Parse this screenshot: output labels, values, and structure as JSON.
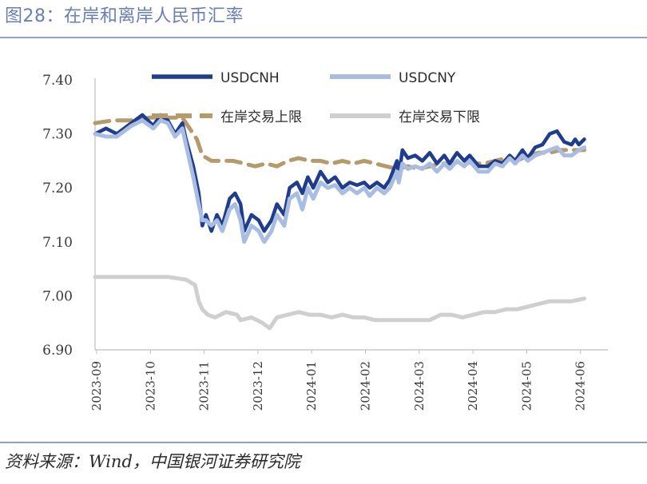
{
  "header": {
    "title": "图28：在岸和离岸人民币汇率"
  },
  "footer": {
    "source": "资料来源：Wind，中国银河证券研究院"
  },
  "chart_data": {
    "type": "line",
    "ylim": [
      6.9,
      7.4
    ],
    "yticks": [
      "7.40",
      "7.30",
      "7.20",
      "7.10",
      "7.00",
      "6.90"
    ],
    "x_labels": [
      "2023-09",
      "2023-10",
      "2023-11",
      "2023-12",
      "2024-01",
      "2024-02",
      "2024-03",
      "2024-04",
      "2024-05",
      "2024-06"
    ],
    "legend": [
      "USDCNH",
      "USDCNY",
      "在岸交易上限",
      "在岸交易下限"
    ],
    "legend_placement": "top",
    "grid": false,
    "colors": {
      "USDCNH": "#1f3d8c",
      "USDCNY": "#a9bde3",
      "upper": "#b49a6c",
      "lower": "#cfcfcf"
    },
    "series": [
      {
        "name": "USDCNH",
        "key": "cnh",
        "values": [
          [
            0,
            7.3
          ],
          [
            0.3,
            7.31
          ],
          [
            0.6,
            7.3
          ],
          [
            1.0,
            7.32
          ],
          [
            1.3,
            7.335
          ],
          [
            1.6,
            7.315
          ],
          [
            1.8,
            7.335
          ],
          [
            2.0,
            7.325
          ],
          [
            2.2,
            7.3
          ],
          [
            2.4,
            7.32
          ],
          [
            2.5,
            7.29
          ],
          [
            2.7,
            7.24
          ],
          [
            2.85,
            7.19
          ],
          [
            2.95,
            7.13
          ],
          [
            3.05,
            7.15
          ],
          [
            3.2,
            7.12
          ],
          [
            3.35,
            7.15
          ],
          [
            3.5,
            7.13
          ],
          [
            3.7,
            7.18
          ],
          [
            3.85,
            7.19
          ],
          [
            4.0,
            7.17
          ],
          [
            4.1,
            7.12
          ],
          [
            4.3,
            7.15
          ],
          [
            4.5,
            7.14
          ],
          [
            4.65,
            7.12
          ],
          [
            4.85,
            7.14
          ],
          [
            5.0,
            7.17
          ],
          [
            5.2,
            7.15
          ],
          [
            5.35,
            7.2
          ],
          [
            5.55,
            7.21
          ],
          [
            5.7,
            7.19
          ],
          [
            5.85,
            7.22
          ],
          [
            6.0,
            7.2
          ],
          [
            6.2,
            7.23
          ],
          [
            6.4,
            7.21
          ],
          [
            6.6,
            7.22
          ],
          [
            6.8,
            7.2
          ],
          [
            7.0,
            7.21
          ],
          [
            7.2,
            7.205
          ],
          [
            7.4,
            7.21
          ],
          [
            7.55,
            7.2
          ],
          [
            7.75,
            7.21
          ],
          [
            7.95,
            7.2
          ],
          [
            8.1,
            7.215
          ],
          [
            8.3,
            7.25
          ],
          [
            8.35,
            7.22
          ],
          [
            8.45,
            7.27
          ],
          [
            8.6,
            7.255
          ],
          [
            8.8,
            7.26
          ],
          [
            9.0,
            7.25
          ],
          [
            9.2,
            7.265
          ],
          [
            9.4,
            7.245
          ],
          [
            9.6,
            7.26
          ],
          [
            9.75,
            7.245
          ],
          [
            9.95,
            7.265
          ],
          [
            10.15,
            7.25
          ],
          [
            10.3,
            7.26
          ],
          [
            10.55,
            7.24
          ],
          [
            10.8,
            7.24
          ],
          [
            11.0,
            7.25
          ],
          [
            11.2,
            7.245
          ],
          [
            11.4,
            7.26
          ],
          [
            11.55,
            7.25
          ],
          [
            11.75,
            7.27
          ],
          [
            11.9,
            7.255
          ],
          [
            12.1,
            7.275
          ],
          [
            12.3,
            7.28
          ],
          [
            12.5,
            7.3
          ],
          [
            12.7,
            7.305
          ],
          [
            12.9,
            7.285
          ],
          [
            13.1,
            7.28
          ],
          [
            13.2,
            7.29
          ],
          [
            13.3,
            7.28
          ],
          [
            13.45,
            7.29
          ]
        ]
      },
      {
        "name": "USDCNY",
        "key": "cny",
        "values": [
          [
            0,
            7.3
          ],
          [
            0.3,
            7.295
          ],
          [
            0.6,
            7.295
          ],
          [
            1.0,
            7.315
          ],
          [
            1.3,
            7.325
          ],
          [
            1.6,
            7.31
          ],
          [
            1.8,
            7.325
          ],
          [
            2.0,
            7.32
          ],
          [
            2.2,
            7.295
          ],
          [
            2.4,
            7.31
          ],
          [
            2.5,
            7.28
          ],
          [
            2.7,
            7.22
          ],
          [
            2.85,
            7.17
          ],
          [
            2.95,
            7.14
          ],
          [
            3.05,
            7.14
          ],
          [
            3.2,
            7.13
          ],
          [
            3.35,
            7.14
          ],
          [
            3.5,
            7.12
          ],
          [
            3.7,
            7.16
          ],
          [
            3.85,
            7.17
          ],
          [
            4.0,
            7.14
          ],
          [
            4.1,
            7.1
          ],
          [
            4.3,
            7.13
          ],
          [
            4.5,
            7.12
          ],
          [
            4.65,
            7.1
          ],
          [
            4.85,
            7.12
          ],
          [
            5.0,
            7.15
          ],
          [
            5.2,
            7.13
          ],
          [
            5.35,
            7.18
          ],
          [
            5.55,
            7.19
          ],
          [
            5.7,
            7.16
          ],
          [
            5.85,
            7.2
          ],
          [
            6.0,
            7.18
          ],
          [
            6.2,
            7.21
          ],
          [
            6.4,
            7.2
          ],
          [
            6.6,
            7.205
          ],
          [
            6.8,
            7.19
          ],
          [
            7.0,
            7.2
          ],
          [
            7.2,
            7.19
          ],
          [
            7.4,
            7.2
          ],
          [
            7.55,
            7.185
          ],
          [
            7.75,
            7.2
          ],
          [
            7.95,
            7.19
          ],
          [
            8.1,
            7.2
          ],
          [
            8.3,
            7.23
          ],
          [
            8.35,
            7.21
          ],
          [
            8.45,
            7.245
          ],
          [
            8.6,
            7.235
          ],
          [
            8.8,
            7.24
          ],
          [
            9.0,
            7.235
          ],
          [
            9.2,
            7.245
          ],
          [
            9.4,
            7.23
          ],
          [
            9.6,
            7.245
          ],
          [
            9.75,
            7.235
          ],
          [
            9.95,
            7.25
          ],
          [
            10.15,
            7.24
          ],
          [
            10.3,
            7.25
          ],
          [
            10.55,
            7.23
          ],
          [
            10.8,
            7.23
          ],
          [
            11.0,
            7.245
          ],
          [
            11.2,
            7.24
          ],
          [
            11.4,
            7.255
          ],
          [
            11.55,
            7.245
          ],
          [
            11.75,
            7.26
          ],
          [
            11.9,
            7.25
          ],
          [
            12.1,
            7.26
          ],
          [
            12.3,
            7.265
          ],
          [
            12.5,
            7.27
          ],
          [
            12.7,
            7.275
          ],
          [
            12.9,
            7.26
          ],
          [
            13.1,
            7.26
          ],
          [
            13.2,
            7.265
          ],
          [
            13.3,
            7.27
          ],
          [
            13.45,
            7.275
          ]
        ]
      },
      {
        "name": "在岸交易上限",
        "key": "upper",
        "values": [
          [
            0,
            7.32
          ],
          [
            0.5,
            7.325
          ],
          [
            1.0,
            7.325
          ],
          [
            1.5,
            7.33
          ],
          [
            2.0,
            7.33
          ],
          [
            2.4,
            7.33
          ],
          [
            2.6,
            7.31
          ],
          [
            2.8,
            7.29
          ],
          [
            2.95,
            7.26
          ],
          [
            3.2,
            7.25
          ],
          [
            3.5,
            7.25
          ],
          [
            3.8,
            7.25
          ],
          [
            4.1,
            7.245
          ],
          [
            4.4,
            7.24
          ],
          [
            4.7,
            7.245
          ],
          [
            5.0,
            7.24
          ],
          [
            5.3,
            7.25
          ],
          [
            5.6,
            7.255
          ],
          [
            5.9,
            7.25
          ],
          [
            6.2,
            7.25
          ],
          [
            6.5,
            7.245
          ],
          [
            6.8,
            7.25
          ],
          [
            7.1,
            7.245
          ],
          [
            7.4,
            7.25
          ],
          [
            7.7,
            7.245
          ],
          [
            8.0,
            7.24
          ],
          [
            8.3,
            7.235
          ],
          [
            8.6,
            7.24
          ],
          [
            8.9,
            7.235
          ],
          [
            9.2,
            7.24
          ],
          [
            9.5,
            7.245
          ],
          [
            9.8,
            7.245
          ],
          [
            10.1,
            7.25
          ],
          [
            10.4,
            7.245
          ],
          [
            10.7,
            7.245
          ],
          [
            11.0,
            7.25
          ],
          [
            11.3,
            7.255
          ],
          [
            11.6,
            7.25
          ],
          [
            11.9,
            7.26
          ],
          [
            12.2,
            7.265
          ],
          [
            12.5,
            7.265
          ],
          [
            12.8,
            7.27
          ],
          [
            13.1,
            7.27
          ],
          [
            13.45,
            7.27
          ]
        ]
      },
      {
        "name": "在岸交易下限",
        "key": "lower",
        "values": [
          [
            0,
            7.035
          ],
          [
            0.5,
            7.035
          ],
          [
            1.0,
            7.035
          ],
          [
            1.5,
            7.035
          ],
          [
            2.0,
            7.035
          ],
          [
            2.5,
            7.03
          ],
          [
            2.75,
            7.02
          ],
          [
            2.85,
            6.99
          ],
          [
            2.95,
            6.975
          ],
          [
            3.1,
            6.965
          ],
          [
            3.3,
            6.96
          ],
          [
            3.6,
            6.97
          ],
          [
            3.9,
            6.965
          ],
          [
            4.0,
            6.955
          ],
          [
            4.3,
            6.96
          ],
          [
            4.6,
            6.95
          ],
          [
            4.8,
            6.94
          ],
          [
            5.0,
            6.96
          ],
          [
            5.3,
            6.965
          ],
          [
            5.6,
            6.97
          ],
          [
            5.9,
            6.965
          ],
          [
            6.2,
            6.965
          ],
          [
            6.5,
            6.96
          ],
          [
            6.8,
            6.965
          ],
          [
            7.1,
            6.96
          ],
          [
            7.4,
            6.96
          ],
          [
            7.7,
            6.955
          ],
          [
            8.0,
            6.955
          ],
          [
            8.3,
            6.955
          ],
          [
            8.6,
            6.955
          ],
          [
            8.9,
            6.955
          ],
          [
            9.2,
            6.955
          ],
          [
            9.5,
            6.965
          ],
          [
            9.8,
            6.965
          ],
          [
            10.1,
            6.96
          ],
          [
            10.4,
            6.965
          ],
          [
            10.7,
            6.97
          ],
          [
            11.0,
            6.97
          ],
          [
            11.3,
            6.975
          ],
          [
            11.6,
            6.975
          ],
          [
            11.9,
            6.98
          ],
          [
            12.2,
            6.985
          ],
          [
            12.5,
            6.99
          ],
          [
            12.8,
            6.99
          ],
          [
            13.1,
            6.99
          ],
          [
            13.45,
            6.995
          ]
        ]
      }
    ]
  }
}
